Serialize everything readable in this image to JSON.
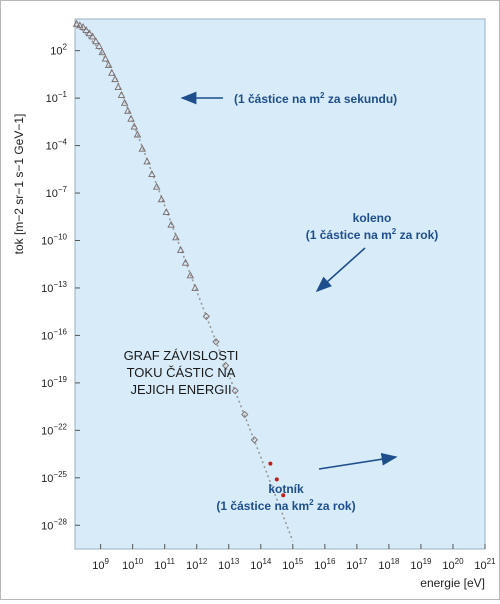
{
  "chart_data": {
    "type": "scatter",
    "x_scale": "log",
    "y_scale": "log",
    "xlabel": "energie [eV]",
    "ylabel": "tok [m−2 sr−1 s−1 GeV−1]",
    "xlim_log10": [
      8.2,
      21.0
    ],
    "ylim_log10": [
      -29.5,
      4.0
    ],
    "x_ticks": [
      {
        "exp": 9,
        "label": "10",
        "sup": "9"
      },
      {
        "exp": 10,
        "label": "10",
        "sup": "10"
      },
      {
        "exp": 11,
        "label": "10",
        "sup": "11"
      },
      {
        "exp": 12,
        "label": "10",
        "sup": "12"
      },
      {
        "exp": 13,
        "label": "10",
        "sup": "13"
      },
      {
        "exp": 14,
        "label": "10",
        "sup": "14"
      },
      {
        "exp": 15,
        "label": "10",
        "sup": "15"
      },
      {
        "exp": 16,
        "label": "10",
        "sup": "16"
      },
      {
        "exp": 17,
        "label": "10",
        "sup": "17"
      },
      {
        "exp": 18,
        "label": "10",
        "sup": "18"
      },
      {
        "exp": 19,
        "label": "10",
        "sup": "19"
      },
      {
        "exp": 20,
        "label": "10",
        "sup": "20"
      },
      {
        "exp": 21,
        "label": "10",
        "sup": "21"
      }
    ],
    "y_ticks": [
      {
        "exp": 2,
        "label": "10",
        "sup": "2"
      },
      {
        "exp": -1,
        "label": "10",
        "sup": "−1"
      },
      {
        "exp": -4,
        "label": "10",
        "sup": "−4"
      },
      {
        "exp": -7,
        "label": "10",
        "sup": "−7"
      },
      {
        "exp": -10,
        "label": "10",
        "sup": "−10"
      },
      {
        "exp": -13,
        "label": "10",
        "sup": "−13"
      },
      {
        "exp": -16,
        "label": "10",
        "sup": "−16"
      },
      {
        "exp": -19,
        "label": "10",
        "sup": "−19"
      },
      {
        "exp": -22,
        "label": "10",
        "sup": "−22"
      },
      {
        "exp": -25,
        "label": "10",
        "sup": "−25"
      },
      {
        "exp": -28,
        "label": "10",
        "sup": "−28"
      }
    ],
    "series": [
      {
        "marker": "open-triangle",
        "color": "#7a6a6a",
        "points_log10": [
          [
            8.25,
            3.7
          ],
          [
            8.35,
            3.6
          ],
          [
            8.45,
            3.5
          ],
          [
            8.55,
            3.3
          ],
          [
            8.65,
            3.1
          ],
          [
            8.75,
            2.9
          ],
          [
            8.85,
            2.6
          ],
          [
            8.95,
            2.3
          ],
          [
            9.05,
            1.9
          ],
          [
            9.15,
            1.5
          ],
          [
            9.25,
            1.1
          ],
          [
            9.35,
            0.6
          ],
          [
            9.45,
            0.2
          ],
          [
            9.55,
            -0.3
          ],
          [
            9.65,
            -0.8
          ],
          [
            9.75,
            -1.3
          ],
          [
            9.85,
            -1.8
          ],
          [
            9.95,
            -2.3
          ],
          [
            10.05,
            -2.8
          ],
          [
            10.15,
            -3.3
          ],
          [
            10.3,
            -4.2
          ],
          [
            10.45,
            -5.0
          ],
          [
            10.6,
            -5.8
          ],
          [
            10.75,
            -6.6
          ],
          [
            10.9,
            -7.4
          ],
          [
            11.05,
            -8.2
          ],
          [
            11.2,
            -9.0
          ],
          [
            11.35,
            -9.8
          ],
          [
            11.5,
            -10.6
          ],
          [
            11.65,
            -11.4
          ],
          [
            11.8,
            -12.2
          ],
          [
            11.95,
            -13.0
          ]
        ]
      },
      {
        "marker": "open-diamond",
        "color": "#7a6a6a",
        "points_log10": [
          [
            12.3,
            -14.8
          ],
          [
            12.6,
            -16.4
          ],
          [
            12.9,
            -17.9
          ],
          [
            13.2,
            -19.5
          ],
          [
            13.5,
            -21.0
          ],
          [
            13.8,
            -22.6
          ]
        ]
      },
      {
        "marker": "filled-dot",
        "color": "#c0201a",
        "points_log10": [
          [
            14.3,
            -24.1
          ],
          [
            14.5,
            -25.1
          ],
          [
            14.7,
            -26.1
          ]
        ]
      }
    ],
    "reference_line": {
      "style": "dashed",
      "color": "#9a9a9a",
      "points_log10": [
        [
          8.2,
          3.8
        ],
        [
          9.0,
          2.0
        ],
        [
          9.5,
          0.2
        ],
        [
          10.0,
          -2.5
        ],
        [
          11.0,
          -7.8
        ],
        [
          12.0,
          -13.2
        ],
        [
          13.0,
          -18.5
        ],
        [
          14.0,
          -23.7
        ],
        [
          15.0,
          -29.0
        ]
      ]
    },
    "annotations": [
      {
        "text": "(1 částice na m",
        "sup": "2",
        "tail": " za sekundu)"
      },
      {
        "lines": [
          {
            "text": "koleno"
          },
          {
            "text": "(1 částice na m",
            "sup": "2",
            "tail": " za rok)"
          }
        ]
      },
      {
        "lines": [
          {
            "text": "kotník"
          },
          {
            "text": "(1 částice na km",
            "sup": "2",
            "tail": " za rok)"
          }
        ]
      }
    ],
    "title_lines": [
      "GRAF ZÁVISLOSTI",
      "TOKU ČÁSTIC NA",
      "JEJICH ENERGII"
    ],
    "colors": {
      "plot_background": "#d7ebf8",
      "annotation_text": "#1f4e8c",
      "arrow": "#1f4e8c",
      "axis_text": "#222222",
      "marker_primary": "#c0201a",
      "marker_secondary": "#7a6a6a"
    }
  }
}
